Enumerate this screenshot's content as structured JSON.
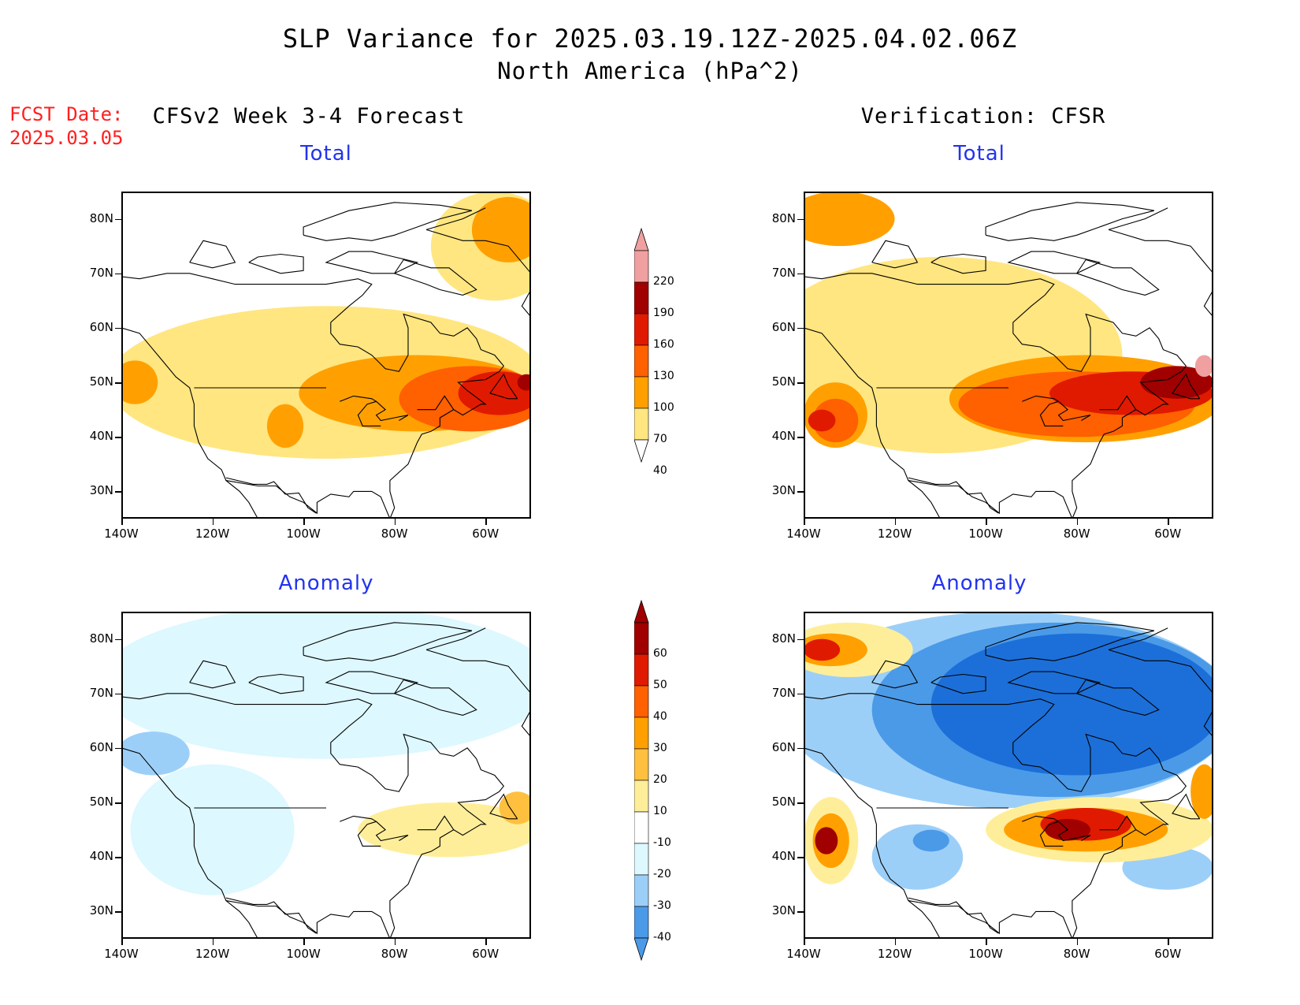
{
  "header": {
    "title": "SLP Variance for 2025.03.19.12Z-2025.04.02.06Z",
    "subtitle": "North America (hPa^2)",
    "fcst_label": "FCST Date:",
    "fcst_date": "2025.03.05",
    "left_heading": "CFSv2 Week 3-4 Forecast",
    "right_heading": "Verification: CFSR"
  },
  "panels": {
    "fc_total": {
      "title": "Total"
    },
    "vf_total": {
      "title": "Total"
    },
    "fc_anom": {
      "title": "Anomaly"
    },
    "vf_anom": {
      "title": "Anomaly"
    }
  },
  "axes": {
    "lat_labels": [
      "80N",
      "70N",
      "60N",
      "50N",
      "40N",
      "30N"
    ],
    "lon_labels": [
      "140W",
      "120W",
      "100W",
      "80W",
      "60W"
    ],
    "lat_values": [
      80,
      70,
      60,
      50,
      40,
      30
    ],
    "lon_values": [
      -140,
      -120,
      -100,
      -80,
      -60
    ],
    "lat_range": [
      25,
      85
    ],
    "lon_range": [
      -140,
      -50
    ]
  },
  "colorbars": {
    "total": {
      "levels": [
        "40",
        "70",
        "100",
        "130",
        "160",
        "190",
        "220"
      ],
      "colors": [
        "#ffe680",
        "#ffa000",
        "#ff6000",
        "#e01a00",
        "#a00000",
        "#f0a0a0",
        "#ffe0e0"
      ]
    },
    "anomaly": {
      "levels": [
        "60",
        "50",
        "40",
        "30",
        "20",
        "10",
        "-10",
        "-20",
        "-30",
        "-40"
      ],
      "colors": [
        "#a00000",
        "#e01a00",
        "#ff6000",
        "#ffa000",
        "#ffc040",
        "#ffee99",
        "#ffffff",
        "#ddf8ff",
        "#9ccff8",
        "#4b9ae8",
        "#1c6fd8"
      ]
    }
  },
  "map_fields": {
    "fc_total": [
      {
        "color": "#ffe680",
        "lon": -95,
        "lat": 50,
        "rx": 48,
        "ry": 14
      },
      {
        "color": "#ffe680",
        "lon": -58,
        "lat": 75,
        "rx": 14,
        "ry": 10
      },
      {
        "color": "#ffa000",
        "lon": -75,
        "lat": 48,
        "rx": 26,
        "ry": 7
      },
      {
        "color": "#ffa000",
        "lon": -104,
        "lat": 42,
        "rx": 4,
        "ry": 4
      },
      {
        "color": "#ffa000",
        "lon": -55,
        "lat": 78,
        "rx": 8,
        "ry": 6
      },
      {
        "color": "#ffa000",
        "lon": -137,
        "lat": 50,
        "rx": 5,
        "ry": 4
      },
      {
        "color": "#ff6000",
        "lon": -63,
        "lat": 47,
        "rx": 16,
        "ry": 6
      },
      {
        "color": "#e01a00",
        "lon": -57,
        "lat": 48,
        "rx": 9,
        "ry": 4
      },
      {
        "color": "#a00000",
        "lon": -51,
        "lat": 50,
        "rx": 2,
        "ry": 1.5
      }
    ],
    "vf_total": [
      {
        "color": "#ffe680",
        "lon": -110,
        "lat": 55,
        "rx": 40,
        "ry": 18
      },
      {
        "color": "#ffa000",
        "lon": -132,
        "lat": 80,
        "rx": 12,
        "ry": 5
      },
      {
        "color": "#ffa000",
        "lon": -78,
        "lat": 47,
        "rx": 30,
        "ry": 8
      },
      {
        "color": "#ffa000",
        "lon": -133,
        "lat": 44,
        "rx": 7,
        "ry": 6
      },
      {
        "color": "#ff6000",
        "lon": -80,
        "lat": 46,
        "rx": 26,
        "ry": 6
      },
      {
        "color": "#ff6000",
        "lon": -133,
        "lat": 43,
        "rx": 5,
        "ry": 4
      },
      {
        "color": "#e01a00",
        "lon": -68,
        "lat": 48,
        "rx": 18,
        "ry": 4
      },
      {
        "color": "#e01a00",
        "lon": -136,
        "lat": 43,
        "rx": 3,
        "ry": 2
      },
      {
        "color": "#a00000",
        "lon": -58,
        "lat": 50,
        "rx": 8,
        "ry": 3
      },
      {
        "color": "#f0a0a0",
        "lon": -52,
        "lat": 53,
        "rx": 2,
        "ry": 2
      }
    ],
    "fc_anom": [
      {
        "color": "#ddf8ff",
        "lon": -95,
        "lat": 72,
        "rx": 50,
        "ry": 14
      },
      {
        "color": "#ddf8ff",
        "lon": -120,
        "lat": 45,
        "rx": 18,
        "ry": 12
      },
      {
        "color": "#9ccff8",
        "lon": -133,
        "lat": 59,
        "rx": 8,
        "ry": 4
      },
      {
        "color": "#ffee99",
        "lon": -68,
        "lat": 45,
        "rx": 20,
        "ry": 5
      },
      {
        "color": "#ffc040",
        "lon": -53,
        "lat": 49,
        "rx": 4,
        "ry": 3
      }
    ],
    "vf_anom": [
      {
        "color": "#9ccff8",
        "lon": -95,
        "lat": 67,
        "rx": 50,
        "ry": 18
      },
      {
        "color": "#4b9ae8",
        "lon": -85,
        "lat": 67,
        "rx": 40,
        "ry": 16
      },
      {
        "color": "#1c6fd8",
        "lon": -80,
        "lat": 68,
        "rx": 32,
        "ry": 13
      },
      {
        "color": "#9ccff8",
        "lon": -115,
        "lat": 40,
        "rx": 10,
        "ry": 6
      },
      {
        "color": "#4b9ae8",
        "lon": -112,
        "lat": 43,
        "rx": 4,
        "ry": 2
      },
      {
        "color": "#9ccff8",
        "lon": -60,
        "lat": 38,
        "rx": 10,
        "ry": 4
      },
      {
        "color": "#ffee99",
        "lon": -130,
        "lat": 78,
        "rx": 14,
        "ry": 5
      },
      {
        "color": "#ffa000",
        "lon": -134,
        "lat": 78,
        "rx": 8,
        "ry": 3
      },
      {
        "color": "#e01a00",
        "lon": -136,
        "lat": 78,
        "rx": 4,
        "ry": 2
      },
      {
        "color": "#ffee99",
        "lon": -134,
        "lat": 43,
        "rx": 6,
        "ry": 8
      },
      {
        "color": "#ffa000",
        "lon": -134,
        "lat": 43,
        "rx": 4,
        "ry": 5
      },
      {
        "color": "#a00000",
        "lon": -135,
        "lat": 43,
        "rx": 2.5,
        "ry": 2.5
      },
      {
        "color": "#ffee99",
        "lon": -75,
        "lat": 45,
        "rx": 25,
        "ry": 6
      },
      {
        "color": "#ffa000",
        "lon": -78,
        "lat": 45,
        "rx": 18,
        "ry": 4
      },
      {
        "color": "#e01a00",
        "lon": -78,
        "lat": 46,
        "rx": 10,
        "ry": 3
      },
      {
        "color": "#a00000",
        "lon": -82,
        "lat": 45,
        "rx": 5,
        "ry": 2
      },
      {
        "color": "#ffa000",
        "lon": -52,
        "lat": 52,
        "rx": 3,
        "ry": 5
      }
    ]
  }
}
